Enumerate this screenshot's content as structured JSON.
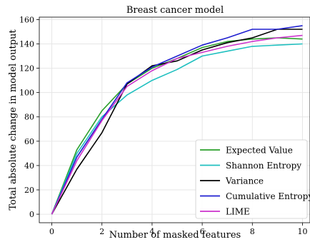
{
  "chart_data": {
    "type": "line",
    "title": "Breast cancer model",
    "xlabel": "Number of masked features",
    "ylabel": "Total absolute change in model output",
    "xlim": [
      -0.5,
      10.3
    ],
    "ylim": [
      -7,
      162
    ],
    "xticks": [
      0,
      2,
      4,
      6,
      8,
      10
    ],
    "yticks": [
      0,
      20,
      40,
      60,
      80,
      100,
      120,
      140,
      160
    ],
    "grid": true,
    "legend_position": "bottom-right",
    "x": [
      0,
      1,
      2,
      3,
      4,
      5,
      6,
      7,
      8,
      9,
      10
    ],
    "series": [
      {
        "name": "Expected Value",
        "color": "#2ca02c",
        "values": [
          0,
          53,
          85,
          107,
          120,
          128,
          137,
          142,
          144,
          145,
          144
        ]
      },
      {
        "name": "Shannon Entropy",
        "color": "#20c0c0",
        "values": [
          0,
          50,
          80,
          98,
          110,
          119,
          130,
          134,
          138,
          139,
          140
        ]
      },
      {
        "name": "Variance",
        "color": "#000000",
        "values": [
          0,
          37,
          67,
          107,
          122,
          126,
          135,
          141,
          145,
          152,
          152
        ]
      },
      {
        "name": "Cumulative Entropy",
        "color": "#1f1fd0",
        "values": [
          0,
          47,
          78,
          108,
          121,
          130,
          139,
          145,
          152,
          152,
          155
        ]
      },
      {
        "name": "LIME",
        "color": "#cc33cc",
        "values": [
          0,
          44,
          77,
          105,
          118,
          128,
          133,
          138,
          142,
          145,
          147
        ]
      }
    ]
  }
}
